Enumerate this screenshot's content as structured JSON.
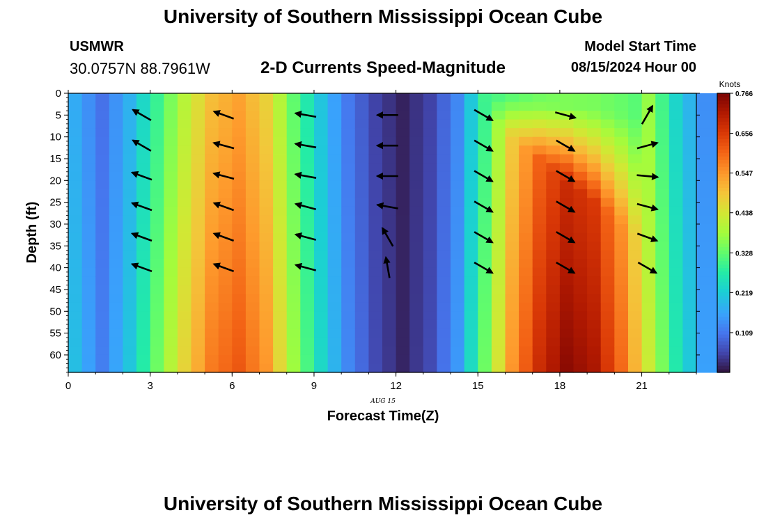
{
  "header": {
    "title": "University of Southern Mississippi Ocean Cube",
    "station_name": "USMWR",
    "station_coords": "30.0757N  88.7961W",
    "subtitle": "2-D Currents Speed-Magnitude",
    "start_label": "Model Start Time",
    "start_value": "08/15/2024 Hour 00",
    "footer_title": "University of Southern Mississippi Ocean Cube"
  },
  "chart_data": {
    "type": "heatmap",
    "title": "2-D Currents Speed-Magnitude",
    "xlabel": "Forecast Time(Z)",
    "ylabel": "Depth (ft)",
    "date_label": "AUG 15",
    "xlim": [
      0,
      23
    ],
    "ylim": [
      0,
      64
    ],
    "x_ticks": [
      0,
      3,
      6,
      9,
      12,
      15,
      18,
      21
    ],
    "y_ticks": [
      0,
      5,
      10,
      15,
      20,
      25,
      30,
      35,
      40,
      45,
      50,
      55,
      60
    ],
    "colorbar": {
      "title": "Knots",
      "ticks": [
        0.109,
        0.219,
        0.328,
        0.438,
        0.547,
        0.656,
        0.766
      ],
      "range": [
        0,
        0.766
      ],
      "colormap": "turbo"
    },
    "speed_by_hour": [
      {
        "hour": 0,
        "speed": 0.2
      },
      {
        "hour": 1,
        "speed": 0.12
      },
      {
        "hour": 2,
        "speed": 0.21
      },
      {
        "hour": 3,
        "speed": 0.34
      },
      {
        "hour": 4,
        "speed": 0.47
      },
      {
        "hour": 5,
        "speed": 0.58
      },
      {
        "hour": 6,
        "speed": 0.62
      },
      {
        "hour": 7,
        "speed": 0.55
      },
      {
        "hour": 8,
        "speed": 0.38
      },
      {
        "hour": 9,
        "speed": 0.24
      },
      {
        "hour": 10,
        "speed": 0.13
      },
      {
        "hour": 11,
        "speed": 0.06
      },
      {
        "hour": 12,
        "speed": 0.02
      },
      {
        "hour": 13,
        "speed": 0.06
      },
      {
        "hour": 14,
        "speed": 0.15
      },
      {
        "hour": 15,
        "speed": 0.34
      },
      {
        "hour": 16,
        "speed": 0.55
      },
      {
        "hour": 17,
        "speed": 0.68
      },
      {
        "hour": 18,
        "speed": 0.75
      },
      {
        "hour": 19,
        "speed": 0.72
      },
      {
        "hour": 20,
        "speed": 0.6
      },
      {
        "hour": 21,
        "speed": 0.43
      },
      {
        "hour": 22,
        "speed": 0.27
      },
      {
        "hour": 23,
        "speed": 0.16
      }
    ],
    "arrows": {
      "hours": [
        2.7,
        5.7,
        8.7,
        11.7,
        15.2,
        18.2,
        21.2
      ],
      "depths": [
        5,
        12,
        19,
        26,
        33,
        40
      ],
      "directions_deg": [
        [
          150,
          150,
          160,
          160,
          160,
          160
        ],
        [
          160,
          165,
          165,
          160,
          160,
          160
        ],
        [
          170,
          170,
          170,
          165,
          165,
          165
        ],
        [
          180,
          180,
          180,
          170,
          120,
          100
        ],
        [
          -30,
          -30,
          -30,
          -30,
          -30,
          -30
        ],
        [
          -15,
          -30,
          -30,
          -30,
          -30,
          -30
        ],
        [
          60,
          15,
          -5,
          -15,
          -20,
          -30
        ]
      ]
    }
  }
}
